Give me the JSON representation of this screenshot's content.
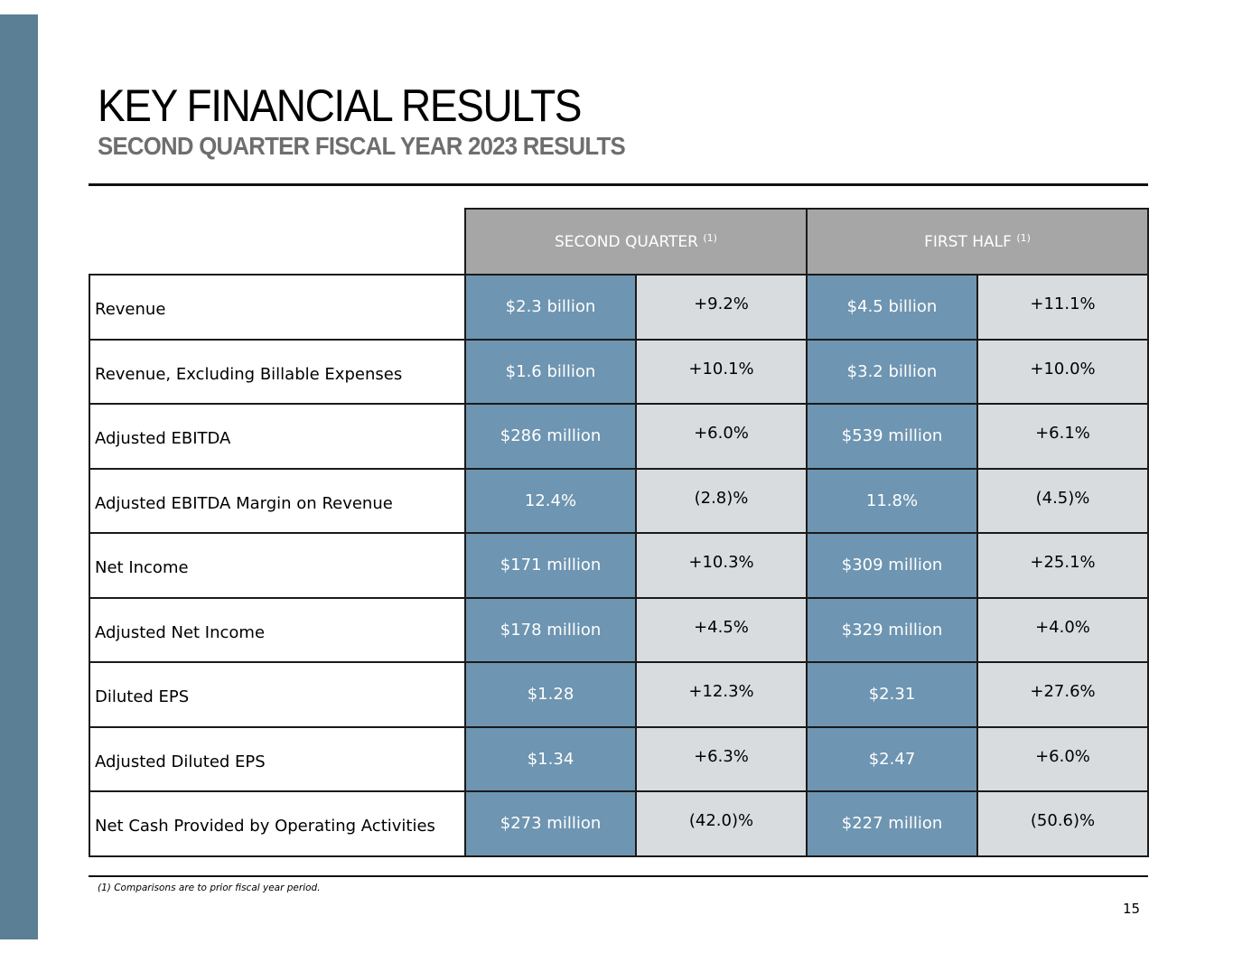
{
  "title": "KEY FINANCIAL RESULTS",
  "subtitle": "SECOND QUARTER FISCAL YEAR 2023 RESULTS",
  "columns": {
    "second_quarter": "SECOND QUARTER",
    "first_half": "FIRST HALF",
    "note_marker": "(1)"
  },
  "rows": [
    {
      "label": "Revenue",
      "q_value": "$2.3 billion",
      "q_change": "+9.2%",
      "h_value": "$4.5 billion",
      "h_change": "+11.1%"
    },
    {
      "label": "Revenue, Excluding Billable Expenses",
      "q_value": "$1.6 billion",
      "q_change": "+10.1%",
      "h_value": "$3.2 billion",
      "h_change": "+10.0%"
    },
    {
      "label": "Adjusted EBITDA",
      "q_value": "$286 million",
      "q_change": "+6.0%",
      "h_value": "$539 million",
      "h_change": "+6.1%"
    },
    {
      "label": "Adjusted EBITDA Margin on Revenue",
      "q_value": "12.4%",
      "q_change": "(2.8)%",
      "h_value": "11.8%",
      "h_change": "(4.5)%"
    },
    {
      "label": "Net Income",
      "q_value": "$171 million",
      "q_change": "+10.3%",
      "h_value": "$309 million",
      "h_change": "+25.1%"
    },
    {
      "label": "Adjusted Net Income",
      "q_value": "$178 million",
      "q_change": "+4.5%",
      "h_value": "$329 million",
      "h_change": "+4.0%"
    },
    {
      "label": "Diluted EPS",
      "q_value": "$1.28",
      "q_change": "+12.3%",
      "h_value": "$2.31",
      "h_change": "+27.6%"
    },
    {
      "label": "Adjusted Diluted EPS",
      "q_value": "$1.34",
      "q_change": "+6.3%",
      "h_value": "$2.47",
      "h_change": "+6.0%"
    },
    {
      "label": "Net Cash Provided by Operating Activities",
      "q_value": "$273 million",
      "q_change": "(42.0)%",
      "h_value": "$227 million",
      "h_change": "(50.6)%"
    }
  ],
  "footnote": "(1) Comparisons are to prior fiscal year period.",
  "page_number": "15",
  "colors": {
    "sidebar": "#5b7f95",
    "header_fill": "#a6a6a6",
    "value_fill": "#6e95b1",
    "change_fill": "#d9dcdf"
  }
}
